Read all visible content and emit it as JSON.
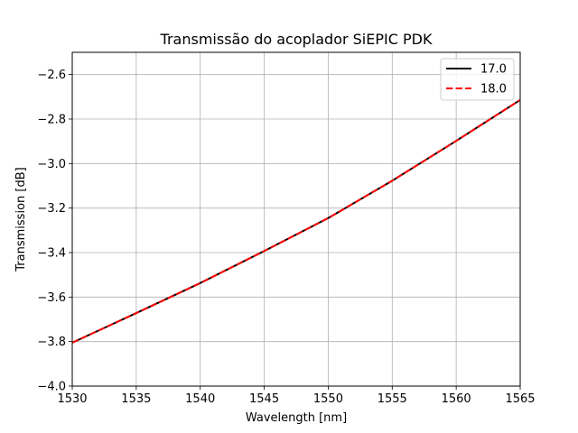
{
  "chart_data": {
    "type": "line",
    "title": "Transmissão do acoplador SiEPIC PDK",
    "xlabel": "Wavelength [nm]",
    "ylabel": "Transmission [dB]",
    "xlim": [
      1530,
      1565
    ],
    "ylim": [
      -4.0,
      -2.5
    ],
    "xticks": [
      1530,
      1535,
      1540,
      1545,
      1550,
      1555,
      1560,
      1565
    ],
    "yticks": [
      -4.0,
      -3.8,
      -3.6,
      -3.4,
      -3.2,
      -3.0,
      -2.8,
      -2.6
    ],
    "xtick_labels": [
      "1530",
      "1535",
      "1540",
      "1545",
      "1550",
      "1555",
      "1560",
      "1565"
    ],
    "ytick_labels": [
      "−4.0",
      "−3.8",
      "−3.6",
      "−3.4",
      "−3.2",
      "−3.0",
      "−2.8",
      "−2.6"
    ],
    "grid": true,
    "legend_position": "top-right",
    "x": [
      1530,
      1535,
      1540,
      1545,
      1550,
      1555,
      1560,
      1565
    ],
    "series": [
      {
        "name": "17.0",
        "color": "#000000",
        "linestyle": "solid",
        "values": [
          -3.805,
          -3.672,
          -3.537,
          -3.393,
          -3.245,
          -3.077,
          -2.898,
          -2.714
        ]
      },
      {
        "name": "18.0",
        "color": "#ff0000",
        "linestyle": "dashed",
        "values": [
          -3.805,
          -3.672,
          -3.537,
          -3.393,
          -3.245,
          -3.077,
          -2.898,
          -2.714
        ]
      }
    ]
  }
}
